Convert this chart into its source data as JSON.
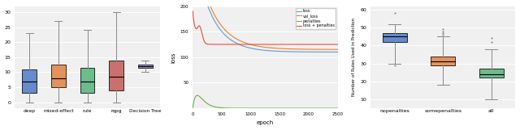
{
  "fig_width": 6.4,
  "fig_height": 1.61,
  "dpi": 100,
  "box1": {
    "categories": [
      "deep",
      "mixed-effect",
      "rule",
      "rqpg",
      "Decision Tree"
    ],
    "medians": [
      7,
      8,
      7,
      8.5,
      12
    ],
    "q1": [
      3,
      5,
      3,
      4,
      11.5
    ],
    "q3": [
      11,
      12.5,
      11.5,
      14,
      12.5
    ],
    "whislo": [
      0,
      0,
      0,
      0,
      10
    ],
    "whishi": [
      23,
      27,
      24,
      30,
      14
    ],
    "colors": [
      "#4472C4",
      "#E07B39",
      "#4DAE72",
      "#C0504D",
      "#7F7FBF"
    ],
    "ylabel": "",
    "ylim": [
      -2,
      32
    ]
  },
  "box2": {
    "categories": [
      "nopenalties",
      "somepenalties",
      "all"
    ],
    "medians": [
      45,
      31,
      24
    ],
    "q1": [
      42,
      29,
      22
    ],
    "q3": [
      47,
      34,
      27
    ],
    "whislo": [
      30,
      18,
      10
    ],
    "whishi": [
      52,
      45,
      38
    ],
    "colors": [
      "#4472C4",
      "#E07B39",
      "#4DAE72"
    ],
    "ylabel": "Number of Rules Used in Prediction",
    "ylim": [
      5,
      62
    ]
  },
  "line": {
    "ylabel": "loss",
    "xlabel": "epoch",
    "xlim": [
      0,
      2500
    ],
    "ylim": [
      0,
      200
    ],
    "yticks": [
      50,
      100,
      150,
      200
    ],
    "ytick_labels": [
      "50",
      "100",
      "150",
      "200"
    ],
    "xticks": [
      0,
      500,
      1000,
      1500,
      2000,
      2500
    ],
    "xtick_labels": [
      "0",
      "500",
      "1000",
      "1500",
      "2000",
      "2500"
    ],
    "legend_labels": [
      "loss",
      "val_loss",
      "penalties",
      "loss + penalties"
    ],
    "legend_colors": [
      "#5B9BD5",
      "#ED7D31",
      "#70AD47",
      "#E74C3C"
    ]
  }
}
